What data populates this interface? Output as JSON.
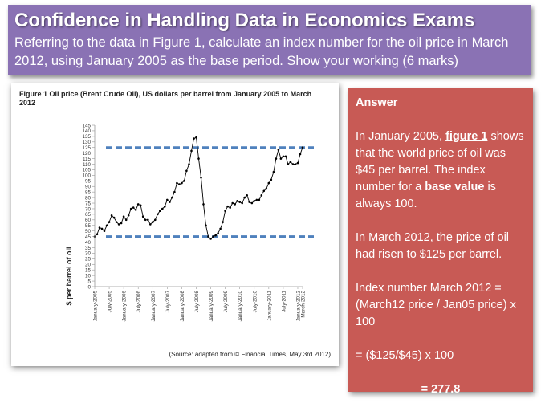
{
  "header": {
    "title": "Confidence in Handling Data in Economics Exams",
    "question": "Referring to the data in Figure 1, calculate an index number for the oil price in March 2012, using January 2005 as the base period. Show your working (6 marks)"
  },
  "colors": {
    "header_bg": "#8a72b4",
    "answer_bg": "#c85a55",
    "series": "#000000",
    "reference_lines": "#4f81bd"
  },
  "answer": {
    "title": "Answer",
    "p1_a": "In January 2005, ",
    "p1_link": "figure 1",
    "p1_b": " shows that the world price of oil was $45 per barrel. The index number for a ",
    "p1_bold": "base value",
    "p1_c": " is always 100.",
    "p2": "In March 2012, the price of oil had risen to $125 per barrel.",
    "p3_l1": "Index number March 2012 =",
    "p3_l2": "(March12 price / Jan05 price) x 100",
    "p4": "= ($125/$45) x 100",
    "result": "= 277.8"
  },
  "chart_data": {
    "type": "line",
    "title": "Figure 1 Oil price (Brent Crude Oil), US dollars per barrel from January 2005 to March 2012",
    "ylabel": "$ per barrel of oil",
    "xlabel": "",
    "source": "(Source: adapted from © Financial Times, May 3rd 2012)",
    "ylim": [
      0,
      145
    ],
    "yticks": [
      0,
      5,
      10,
      15,
      20,
      25,
      30,
      35,
      40,
      45,
      50,
      55,
      60,
      65,
      70,
      75,
      80,
      85,
      90,
      95,
      100,
      105,
      110,
      115,
      120,
      125,
      130,
      135,
      140,
      145
    ],
    "xlim": [
      0,
      86
    ],
    "xticks": [
      {
        "label": "January-2005",
        "x": 0
      },
      {
        "label": "July-2005",
        "x": 6
      },
      {
        "label": "January-2006",
        "x": 12
      },
      {
        "label": "July-2006",
        "x": 18
      },
      {
        "label": "January-2007",
        "x": 24
      },
      {
        "label": "July-2007",
        "x": 30
      },
      {
        "label": "January-2008",
        "x": 36
      },
      {
        "label": "July-2008",
        "x": 42
      },
      {
        "label": "January-2009",
        "x": 48
      },
      {
        "label": "July-2009",
        "x": 54
      },
      {
        "label": "January-2010",
        "x": 60
      },
      {
        "label": "July-2010",
        "x": 66
      },
      {
        "label": "January-2011",
        "x": 72
      },
      {
        "label": "July-2011",
        "x": 78
      },
      {
        "label": "January-2012",
        "x": 84
      },
      {
        "label": "March-2012",
        "x": 86
      }
    ],
    "reference_lines": [
      125,
      45
    ],
    "series": [
      {
        "name": "",
        "x": [
          0,
          1,
          2,
          3,
          4,
          5,
          6,
          7,
          8,
          9,
          10,
          11,
          12,
          13,
          14,
          15,
          16,
          17,
          18,
          19,
          20,
          21,
          22,
          23,
          24,
          25,
          26,
          27,
          28,
          29,
          30,
          31,
          32,
          33,
          34,
          35,
          36,
          37,
          38,
          39,
          40,
          41,
          42,
          43,
          44,
          45,
          46,
          47,
          48,
          49,
          50,
          51,
          52,
          53,
          54,
          55,
          56,
          57,
          58,
          59,
          60,
          61,
          62,
          63,
          64,
          65,
          66,
          67,
          68,
          69,
          70,
          71,
          72,
          73,
          74,
          75,
          76,
          77,
          78,
          79,
          80,
          81,
          82,
          83,
          84,
          85,
          86
        ],
        "y": [
          45,
          47,
          53,
          52,
          50,
          55,
          58,
          64,
          62,
          58,
          56,
          57,
          63,
          60,
          64,
          70,
          71,
          69,
          74,
          73,
          63,
          60,
          60,
          56,
          58,
          60,
          65,
          68,
          70,
          72,
          78,
          76,
          80,
          85,
          93,
          92,
          93,
          95,
          104,
          110,
          122,
          133,
          134,
          115,
          98,
          74,
          55,
          45,
          43,
          45,
          46,
          48,
          52,
          58,
          68,
          72,
          71,
          75,
          74,
          77,
          76,
          75,
          80,
          82,
          76,
          75,
          77,
          78,
          78,
          82,
          86,
          88,
          93,
          96,
          103,
          115,
          123,
          115,
          117,
          117,
          110,
          112,
          110,
          110,
          111,
          119,
          125
        ]
      }
    ]
  }
}
